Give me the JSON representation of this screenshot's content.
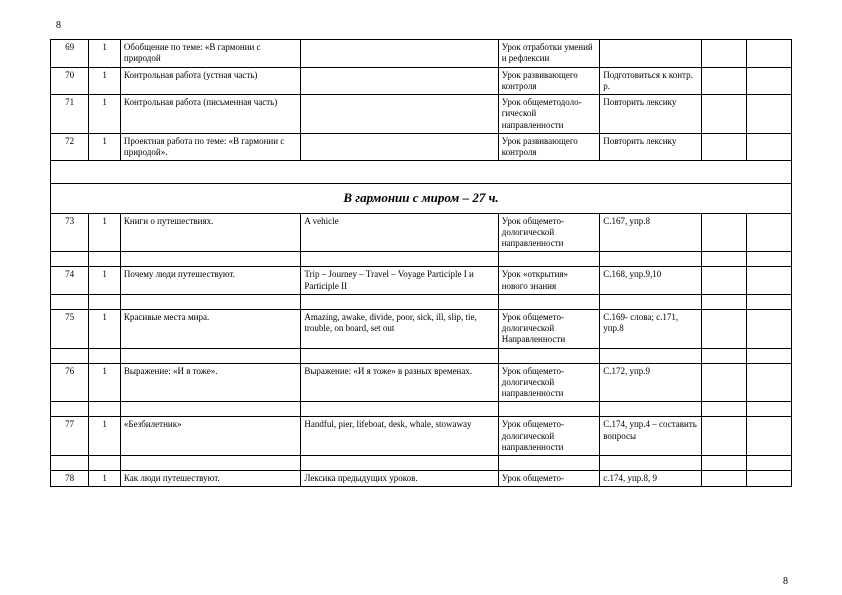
{
  "page_number_top": "8",
  "page_number_bottom": "8",
  "section_header": "В гармонии с миром – 27 ч.",
  "rows_top": [
    {
      "n": "69",
      "h": "1",
      "topic": "Обобщение  по теме: «В гармонии с природой",
      "mat": "",
      "type": "Урок отработки умений и рефлексии",
      "hw": "",
      "a": "",
      "b": ""
    },
    {
      "n": "70",
      "h": "1",
      "topic": "Контрольная работа  (устная часть)",
      "mat": "",
      "type": "Урок развивающего контроля",
      "hw": "Подготовиться к контр. р.",
      "a": "",
      "b": ""
    },
    {
      "n": "71",
      "h": "1",
      "topic": "Контрольная работа (письменная часть)",
      "mat": "",
      "type": "Урок общеметодоло-гической направленности",
      "hw": " Повторить лексику",
      "a": "",
      "b": ""
    },
    {
      "n": "72",
      "h": "1",
      "topic": "Проектная работа по теме: «В гармонии с природой».",
      "mat": "",
      "type": "Урок развивающего контроля",
      "hw": " Повторить лексику",
      "a": "",
      "b": ""
    }
  ],
  "rows_bot": [
    {
      "n": "73",
      "h": "1",
      "topic": " Книги о путешествиях.",
      "mat": "A vehicle",
      "type": "Урок общемето-дологической направленности",
      "hw": "С.167, упр.8",
      "a": "",
      "b": ""
    },
    {
      "n": "74",
      "h": "1",
      "topic": "Почему люди путешествуют.",
      "mat": "Trip – Journey – Travel – Voyage Participle I и Participle II",
      "type": "Урок «открытия» нового знания",
      "hw": "С.168, упр.9,10",
      "a": "",
      "b": ""
    },
    {
      "n": "75",
      "h": "1",
      "topic": "Красивые места мира.",
      "mat": "Amazing, awake, divide, poor, sick, ill, slip, tie, trouble, on board, set out",
      "type": "Урок общемето-дологической Направленности",
      "hw": "С.169- слова; с.171, упр.8",
      "a": "",
      "b": ""
    },
    {
      "n": "76",
      "h": "1",
      "topic": "Выражение: «И я тоже».",
      "mat": "Выражение: «И я тоже» в разных временах.",
      "type": "Урок общемето-дологической направленности",
      "hw": "С.172, упр.9",
      "a": "",
      "b": ""
    },
    {
      "n": "77",
      "h": "1",
      "topic": " «Безбилетник»",
      "mat": "Handful, pier, lifeboat, desk, whale, stowaway",
      "type": "Урок общемето-дологической направленности",
      "hw": "С.174, упр.4 – составить вопросы",
      "a": "",
      "b": ""
    },
    {
      "n": "78",
      "h": "1",
      "topic": "Как люди путешествуют.",
      "mat": "Лексика предыдущих уроков.",
      "type": "Урок общемето-",
      "hw": "с.174, упр.8, 9",
      "a": "",
      "b": ""
    }
  ]
}
